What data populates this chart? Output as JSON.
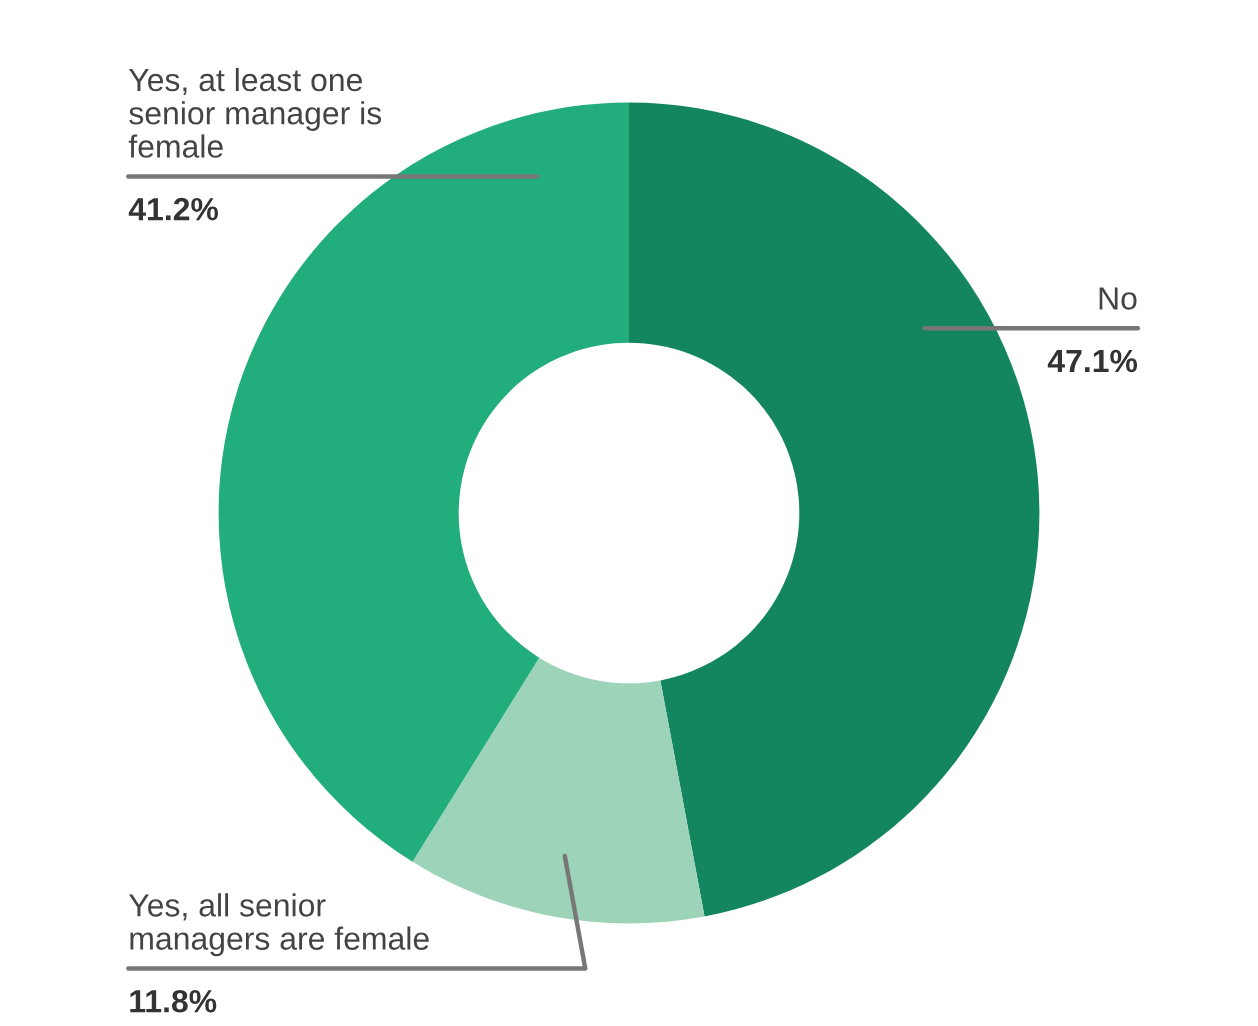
{
  "chart_data": {
    "type": "donut",
    "categories": [
      "No",
      "Yes, all senior\nmanagers are female",
      "Yes, at least one\nsenior manager is\nfemale"
    ],
    "values": [
      47.1,
      11.8,
      41.2
    ],
    "colors": [
      "#138660",
      "#9dd3b8",
      "#22ad7c"
    ],
    "value_labels": [
      "47.1%",
      "11.8%",
      "41.2%"
    ]
  }
}
